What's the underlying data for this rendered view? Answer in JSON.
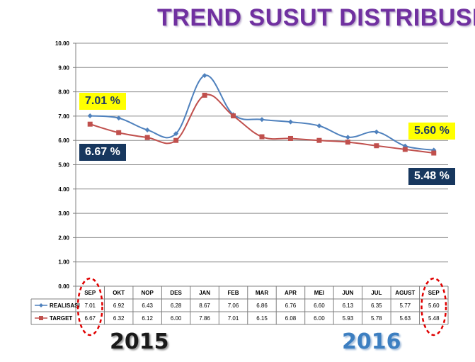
{
  "title": "TREND SUSUT DISTRIBUSI",
  "callouts": {
    "realisasi_start": "7.01 %",
    "target_start": "6.67 %",
    "realisasi_end": "5.60 %",
    "target_end": "5.48 %"
  },
  "years": {
    "left": "2015",
    "right": "2016"
  },
  "colors": {
    "realisasi": "#4F81BD",
    "target": "#C0504D",
    "title": "#7030A0",
    "callout_yellow": "#FFFF00",
    "callout_navy": "#17375E",
    "circle": "#E00000"
  },
  "chart_data": {
    "type": "line",
    "categories": [
      "SEP",
      "OKT",
      "NOP",
      "DES",
      "JAN",
      "FEB",
      "MAR",
      "APR",
      "MEI",
      "JUN",
      "JUL",
      "AGUST",
      "SEP"
    ],
    "series": [
      {
        "name": "REALISASI",
        "values": [
          7.01,
          6.92,
          6.43,
          6.28,
          8.67,
          7.06,
          6.86,
          6.76,
          6.6,
          6.13,
          6.35,
          5.77,
          5.6
        ]
      },
      {
        "name": "TARGET",
        "values": [
          6.67,
          6.32,
          6.12,
          6.0,
          7.86,
          7.01,
          6.15,
          6.08,
          6.0,
          5.93,
          5.78,
          5.63,
          5.48
        ]
      }
    ],
    "ylim": [
      0,
      10
    ],
    "yticks": [
      "0.00",
      "1.00",
      "2.00",
      "3.00",
      "4.00",
      "5.00",
      "6.00",
      "7.00",
      "8.00",
      "9.00",
      "10.00"
    ],
    "grid": true,
    "legend": "data-table",
    "table_values": {
      "REALISASI": [
        "7.01",
        "6.92",
        "6.43",
        "6.28",
        "8.67",
        "7.06",
        "6.86",
        "6.76",
        "6.60",
        "6.13",
        "6.35",
        "5.77",
        "5.60"
      ],
      "TARGET": [
        "6.67",
        "6.32",
        "6.12",
        "6.00",
        "7.86",
        "7.01",
        "6.15",
        "6.08",
        "6.00",
        "5.93",
        "5.78",
        "5.63",
        "5.48"
      ]
    }
  }
}
